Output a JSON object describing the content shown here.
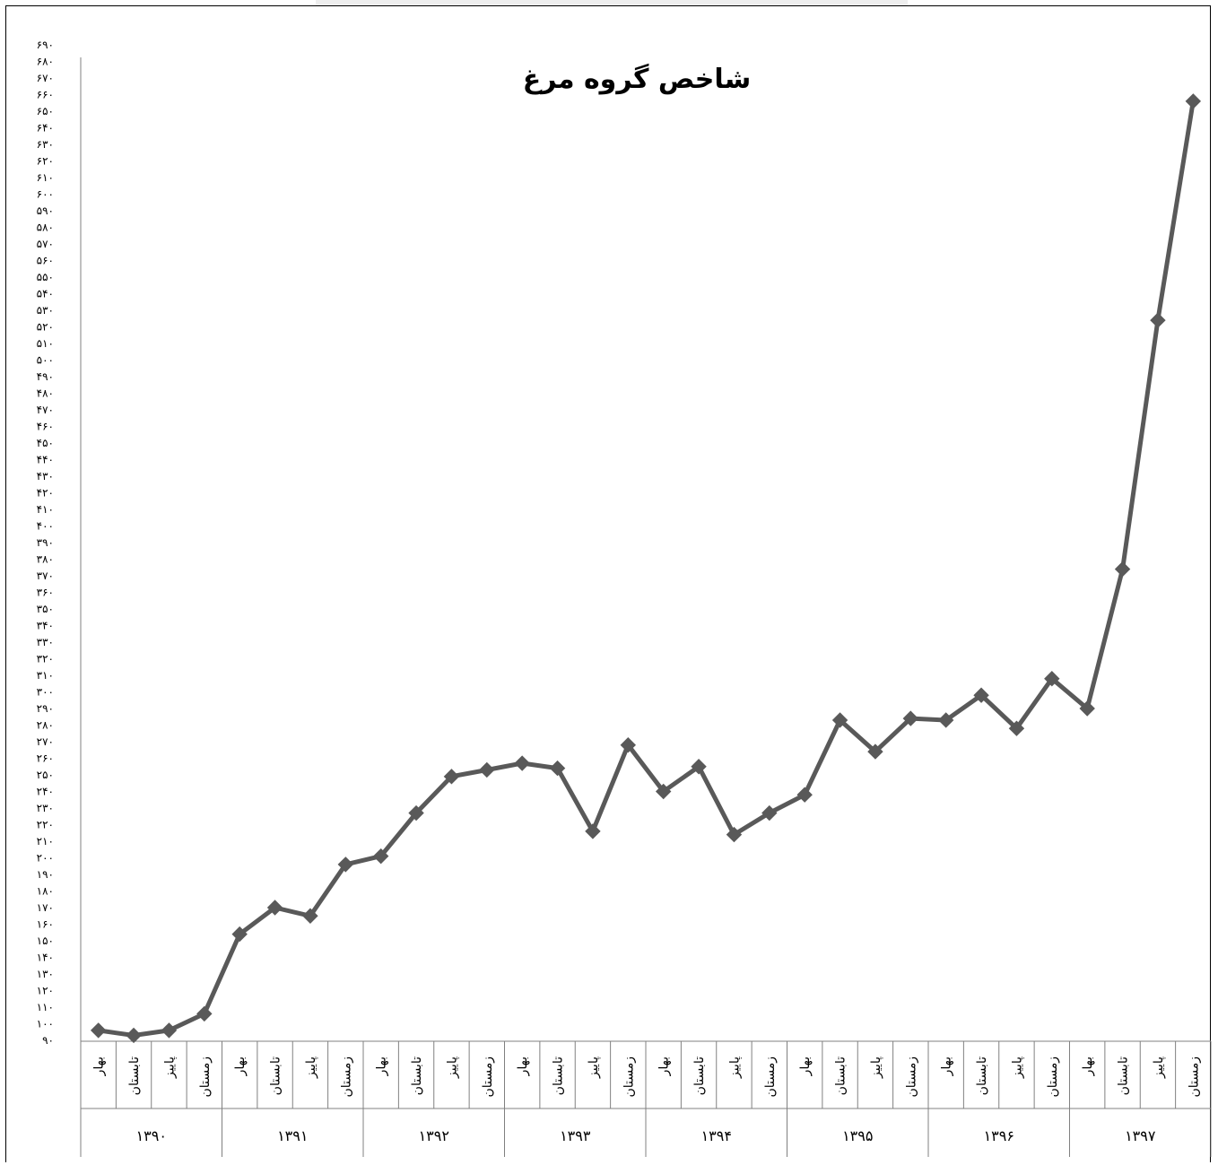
{
  "chart_data": {
    "type": "line",
    "title": "شاخص گروه مرغ",
    "xlabel": "",
    "ylabel": "",
    "ylim": [
      90,
      690
    ],
    "y_ticks": [
      90,
      100,
      110,
      120,
      130,
      140,
      150,
      160,
      170,
      180,
      190,
      200,
      210,
      220,
      230,
      240,
      250,
      260,
      270,
      280,
      290,
      300,
      310,
      320,
      330,
      340,
      350,
      360,
      370,
      380,
      390,
      400,
      410,
      420,
      430,
      440,
      450,
      460,
      470,
      480,
      490,
      500,
      510,
      520,
      530,
      540,
      550,
      560,
      570,
      580,
      590,
      600,
      610,
      620,
      630,
      640,
      650,
      660,
      670,
      680,
      690
    ],
    "y_tick_labels": [
      "۹۰",
      "۱۰۰",
      "۱۱۰",
      "۱۲۰",
      "۱۳۰",
      "۱۴۰",
      "۱۵۰",
      "۱۶۰",
      "۱۷۰",
      "۱۸۰",
      "۱۹۰",
      "۲۰۰",
      "۲۱۰",
      "۲۲۰",
      "۲۳۰",
      "۲۴۰",
      "۲۵۰",
      "۲۶۰",
      "۲۷۰",
      "۲۸۰",
      "۲۹۰",
      "۳۰۰",
      "۳۱۰",
      "۳۲۰",
      "۳۳۰",
      "۳۴۰",
      "۳۵۰",
      "۳۶۰",
      "۳۷۰",
      "۳۸۰",
      "۳۹۰",
      "۴۰۰",
      "۴۱۰",
      "۴۲۰",
      "۴۳۰",
      "۴۴۰",
      "۴۵۰",
      "۴۶۰",
      "۴۷۰",
      "۴۸۰",
      "۴۹۰",
      "۵۰۰",
      "۵۱۰",
      "۵۲۰",
      "۵۳۰",
      "۵۴۰",
      "۵۵۰",
      "۵۶۰",
      "۵۷۰",
      "۵۸۰",
      "۵۹۰",
      "۶۰۰",
      "۶۱۰",
      "۶۲۰",
      "۶۳۰",
      "۶۴۰",
      "۶۵۰",
      "۶۶۰",
      "۶۷۰",
      "۶۸۰",
      "۶۹۰"
    ],
    "seasons": [
      "بهار",
      "تابستان",
      "پاییز",
      "زمستان"
    ],
    "years": [
      "۱۳۹۰",
      "۱۳۹۱",
      "۱۳۹۲",
      "۱۳۹۳",
      "۱۳۹۴",
      "۱۳۹۵",
      "۱۳۹۶",
      "۱۳۹۷"
    ],
    "grid": false,
    "legend": "none",
    "series": [
      {
        "color": "#595959",
        "marker": "diamond",
        "values": [
          96,
          93,
          96,
          106,
          154,
          170,
          165,
          196,
          201,
          227,
          249,
          253,
          257,
          254,
          216,
          268,
          240,
          255,
          214,
          227,
          238,
          283,
          264,
          284,
          283,
          298,
          278,
          308,
          290,
          374,
          524,
          656
        ]
      }
    ]
  }
}
